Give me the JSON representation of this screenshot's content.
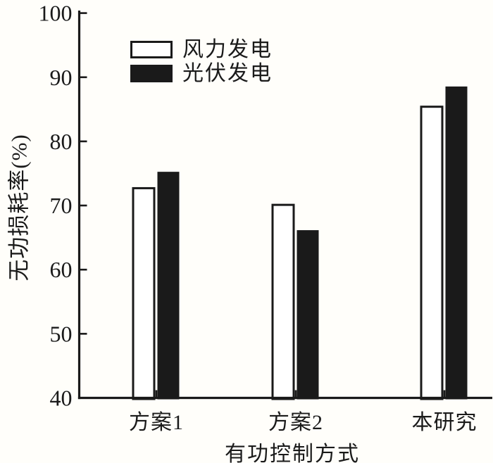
{
  "figure": {
    "background_color": "#fffefa",
    "ink_color": "#1a1a1a"
  },
  "chart_data": {
    "type": "bar",
    "title": "",
    "xlabel": "有功控制方式",
    "ylabel": "无功损耗率(%)",
    "categories": [
      "方案1",
      "方案2",
      "本研究"
    ],
    "series": [
      {
        "name": "风力发电",
        "fill": "#ffffff",
        "values": [
          72.7,
          70.1,
          85.4
        ]
      },
      {
        "name": "光伏发电",
        "fill": "#1a1a1a",
        "values": [
          75.2,
          66.1,
          88.5
        ]
      }
    ],
    "ylim": [
      40,
      100
    ],
    "yticks": [
      40,
      50,
      60,
      70,
      80,
      90,
      100
    ],
    "grid": false,
    "legend_position": "upper-left-inside",
    "tick_direction": "in"
  }
}
